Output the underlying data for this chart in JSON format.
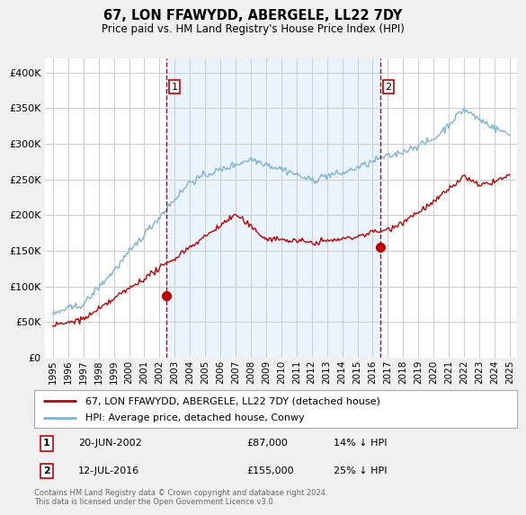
{
  "title": "67, LON FFAWYDD, ABERGELE, LL22 7DY",
  "subtitle": "Price paid vs. HM Land Registry's House Price Index (HPI)",
  "ylabel_ticks": [
    "£0",
    "£50K",
    "£100K",
    "£150K",
    "£200K",
    "£250K",
    "£300K",
    "£350K",
    "£400K"
  ],
  "ytick_values": [
    0,
    50000,
    100000,
    150000,
    200000,
    250000,
    300000,
    350000,
    400000
  ],
  "ylim": [
    0,
    420000
  ],
  "xlim_start": 1994.5,
  "xlim_end": 2025.5,
  "hpi_color": "#7fb3d3",
  "price_color": "#c00000",
  "marker1_x": 2002.47,
  "marker1_y": 87000,
  "marker2_x": 2016.53,
  "marker2_y": 155000,
  "vline1_x": 2002.47,
  "vline2_x": 2016.53,
  "shade_color": "#ddeeff",
  "legend_line1": "67, LON FFAWYDD, ABERGELE, LL22 7DY (detached house)",
  "legend_line2": "HPI: Average price, detached house, Conwy",
  "annotation1_label": "1",
  "annotation1_date": "20-JUN-2002",
  "annotation1_price": "£87,000",
  "annotation1_hpi": "14% ↓ HPI",
  "annotation2_label": "2",
  "annotation2_date": "12-JUL-2016",
  "annotation2_price": "£155,000",
  "annotation2_hpi": "25% ↓ HPI",
  "footer": "Contains HM Land Registry data © Crown copyright and database right 2024.\nThis data is licensed under the Open Government Licence v3.0.",
  "bg_color": "#f0f0f0",
  "plot_bg_color": "#ffffff"
}
